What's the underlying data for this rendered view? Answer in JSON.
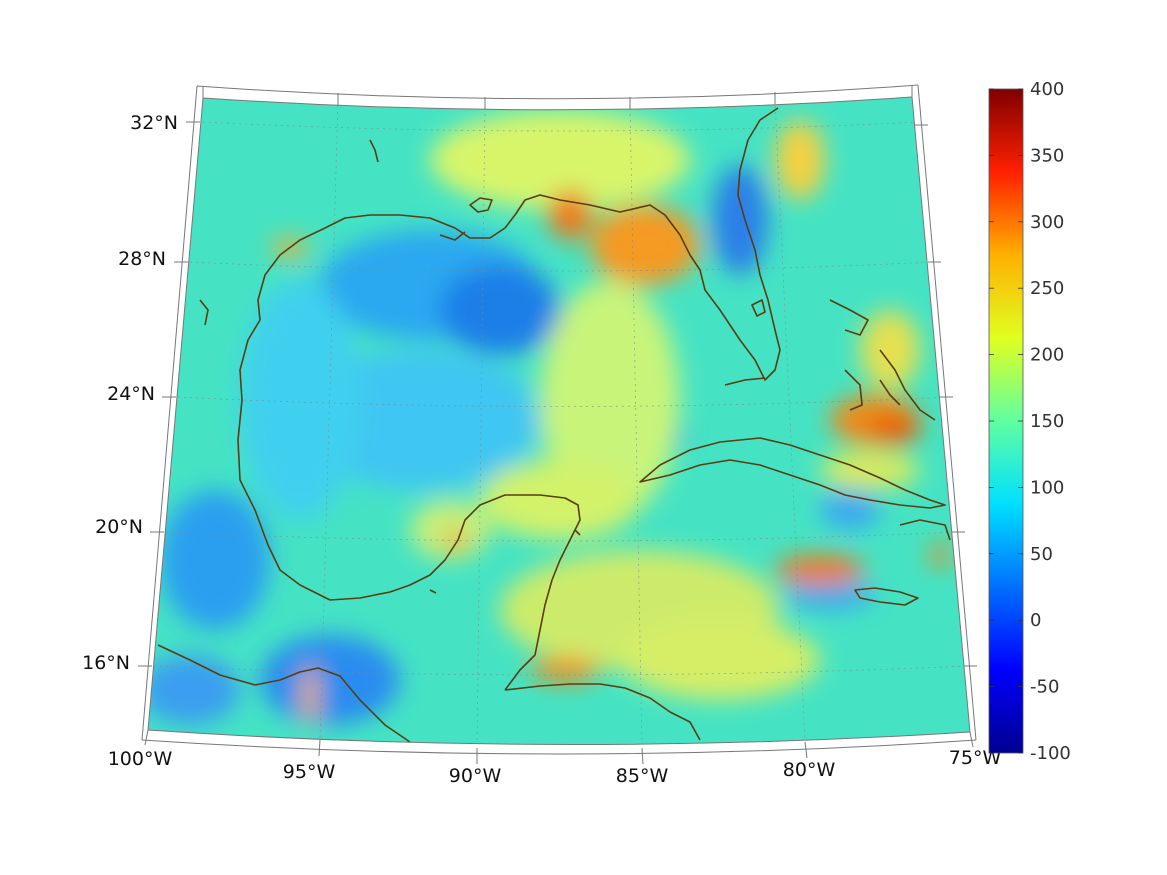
{
  "colorbar": {
    "labels": [
      "400",
      "350",
      "300",
      "250",
      "200",
      "150",
      "100",
      "50",
      "0",
      "-50",
      "-100"
    ],
    "min": -100,
    "max": 400,
    "colormap": "jet"
  },
  "axes": {
    "lon_labels": [
      "100°W",
      "95°W",
      "90°W",
      "85°W",
      "80°W",
      "75°W"
    ],
    "lat_labels": [
      "32°N",
      "28°N",
      "24°N",
      "20°N",
      "16°N"
    ]
  },
  "map": {
    "region": "Gulf of Mexico and Caribbean",
    "lon_range": [
      -100,
      -75
    ],
    "lat_range": [
      14,
      33
    ],
    "coastline_color": "#5a3d10",
    "background_field_color": "#3ee6c8"
  }
}
